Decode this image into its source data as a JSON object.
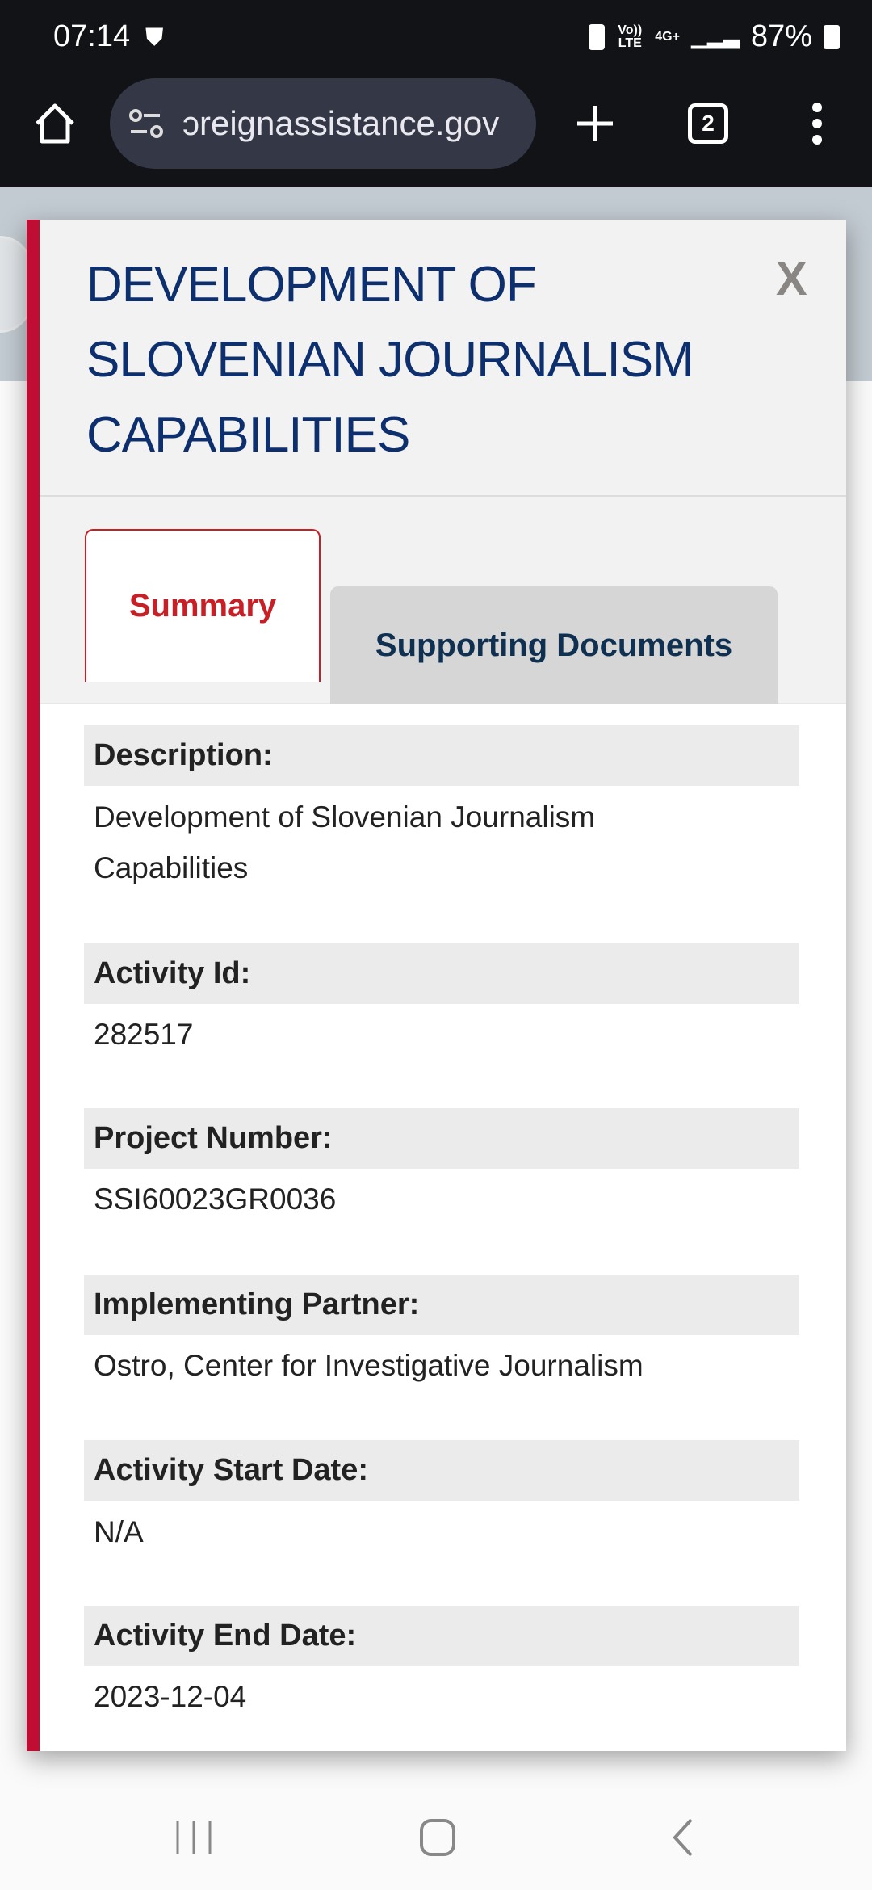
{
  "status_bar": {
    "time": "07:14",
    "battery": "87%",
    "network": "4G+",
    "volte": "Vo)) LTE"
  },
  "browser": {
    "url": "ɔreignassistance.gov",
    "tab_count": "2"
  },
  "modal": {
    "title": "DEVELOPMENT OF SLOVENIAN JOURNALISM CAPABILITIES",
    "close_label": "X",
    "tabs": [
      {
        "label": "Summary",
        "active": true
      },
      {
        "label": "Supporting Documents",
        "active": false
      }
    ],
    "fields": [
      {
        "label": "Description:",
        "value": "Development of Slovenian Journalism Capabilities"
      },
      {
        "label": "Activity Id:",
        "value": "282517"
      },
      {
        "label": "Project Number:",
        "value": "SSI60023GR0036"
      },
      {
        "label": "Implementing Partner:",
        "value": "Ostro, Center for Investigative Journalism"
      },
      {
        "label": "Activity Start Date:",
        "value": "N/A"
      },
      {
        "label": "Activity End Date:",
        "value": "2023-12-04"
      }
    ]
  },
  "colors": {
    "accent_red": "#bf0d33",
    "title_blue": "#0d2f6e"
  }
}
